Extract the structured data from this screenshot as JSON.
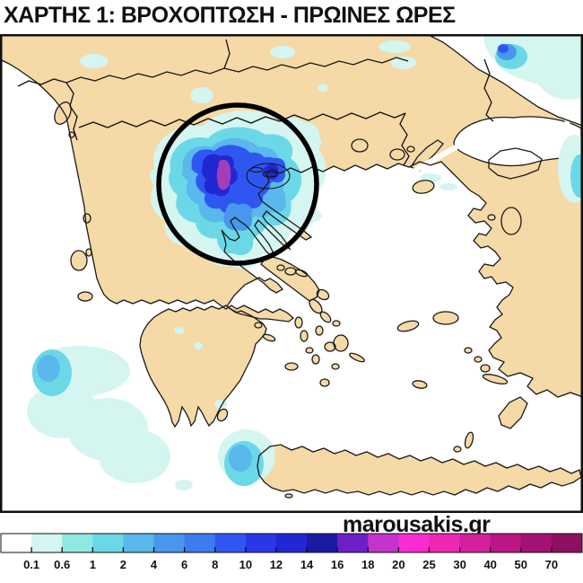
{
  "title": "ΧΑΡΤΗΣ 1: ΒΡΟΧΟΠΤΩΣΗ - ΠΡΩΙΝΕΣ ΩΡΕΣ",
  "watermark": "marousakis.gr",
  "map": {
    "land_color": "#f5d9a6",
    "sea_color": "#ffffff",
    "coast_color": "#1a1a1a",
    "border_color": "#111111",
    "frame_color": "#111111",
    "annotation_circle_color": "#000000",
    "heavy_cell_color": "#a23fb8"
  },
  "colorbar": {
    "labels": [
      "0.1",
      "0.6",
      "1",
      "2",
      "4",
      "6",
      "8",
      "10",
      "12",
      "14",
      "16",
      "18",
      "20",
      "25",
      "30",
      "40",
      "50",
      "70"
    ],
    "colors": [
      "#ffffff",
      "#d4f5f0",
      "#90e8e0",
      "#6bd8e8",
      "#5ab8ec",
      "#4897ec",
      "#3d7bf0",
      "#3056f2",
      "#2838e8",
      "#2127d2",
      "#1a1ba0",
      "#6e1fc8",
      "#c433cc",
      "#fa2bd2",
      "#ee28b4",
      "#d41f9e",
      "#bb1586",
      "#a21272",
      "#8f0f60"
    ],
    "label_color": "#111111"
  },
  "rain_areas": [
    {
      "area": "central-macedonia-chalkidiki",
      "peak_scale_band": "18-20",
      "annotated": "circled"
    },
    {
      "area": "black-sea-bosphorus-corner",
      "peak_scale_band": "8-10"
    },
    {
      "area": "ionian-sea-southwest",
      "peak_scale_band": "2-4"
    },
    {
      "area": "west-of-crete",
      "peak_scale_band": "2-4"
    },
    {
      "area": "scattered-northern-spots",
      "peak_scale_band": "0.1-0.6"
    }
  ]
}
